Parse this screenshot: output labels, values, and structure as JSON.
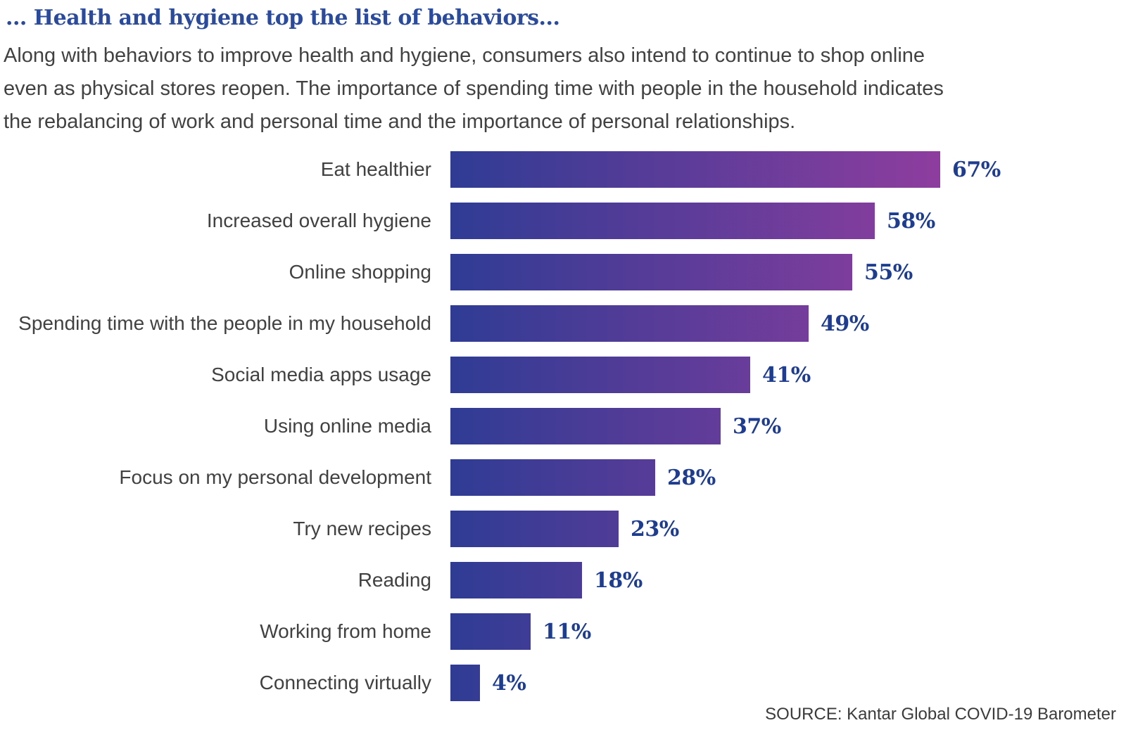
{
  "header": {
    "title": "... Health and hygiene top the list of behaviors...",
    "intro_lines": [
      "Along with behaviors to improve health and hygiene, consumers also intend to continue to shop online",
      "even as physical stores reopen. The importance of spending time with people in the household indicates",
      "the rebalancing of work and personal time and the importance of personal relationships."
    ]
  },
  "chart_data": {
    "type": "bar",
    "orientation": "horizontal",
    "categories": [
      "Eat healthier",
      "Increased overall hygiene",
      "Online shopping",
      "Spending time with the people in my household",
      "Social media apps usage",
      "Using online media",
      "Focus on my personal development",
      "Try new recipes",
      "Reading",
      "Working from home",
      "Connecting virtually"
    ],
    "values": [
      67,
      58,
      55,
      49,
      41,
      37,
      28,
      23,
      18,
      11,
      4
    ],
    "value_suffix": "%",
    "xlim": [
      0,
      67
    ],
    "grid": false,
    "legend": "none",
    "bar_gradient_start": "#2f3c94",
    "bar_gradient_end": "#8e3d9e",
    "value_label_color": "#1e3d90"
  },
  "footer": {
    "source": "SOURCE: Kantar Global COVID-19 Barometer"
  },
  "colors": {
    "title": "#2a4b9d",
    "body_text": "#414141",
    "background": "#ffffff"
  }
}
